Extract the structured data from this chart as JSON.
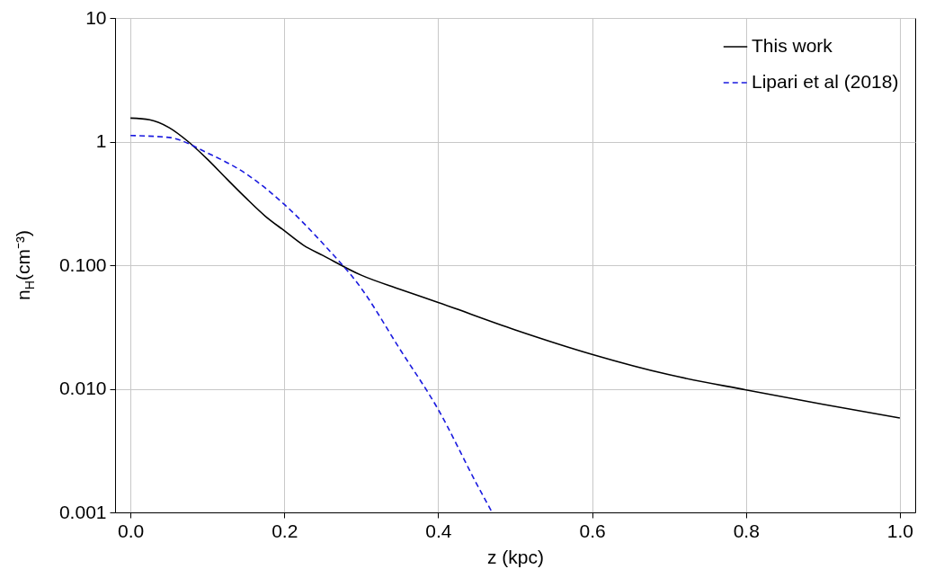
{
  "chart_data": {
    "type": "line",
    "xlabel": "z (kpc)",
    "ylabel": "n$_{H}$(cm⁻³)",
    "log": "y",
    "grid": true,
    "legend": "top right",
    "xlim": [
      -0.02,
      1.02
    ],
    "xticks": [
      {
        "value": 0,
        "label": "0.0"
      },
      0.2,
      0.4,
      0.6,
      0.8,
      {
        "value": 1,
        "label": "1.0"
      }
    ],
    "ylim": [
      0.001,
      10
    ],
    "yticks": [
      0.001,
      {
        "value": 0.01,
        "label": "0.010"
      },
      {
        "value": 0.1,
        "label": "0.100"
      },
      1,
      10
    ],
    "series": [
      {
        "name": "This work",
        "color": "#000000",
        "line_style": "solid",
        "x": [
          0,
          0.025,
          0.05,
          0.075,
          0.1,
          0.125,
          0.15,
          0.175,
          0.2,
          0.225,
          0.25,
          0.3,
          0.35,
          0.4,
          0.5,
          0.6,
          0.7,
          0.8,
          0.9,
          1.0
        ],
        "values": [
          1.55,
          1.5,
          1.3,
          1.0,
          0.72,
          0.5,
          0.35,
          0.25,
          0.19,
          0.145,
          0.12,
          0.083,
          0.064,
          0.05,
          0.03,
          0.019,
          0.013,
          0.0098,
          0.0075,
          0.0058
        ]
      },
      {
        "name": "Lipari et al (2018)",
        "color": "#1a1adf",
        "line_style": "dashed",
        "x": [
          0,
          0.05,
          0.1,
          0.15,
          0.2,
          0.25,
          0.3,
          0.35,
          0.4,
          0.45,
          0.47
        ],
        "values": [
          1.12,
          1.08,
          0.81,
          0.55,
          0.31,
          0.15,
          0.065,
          0.021,
          0.0068,
          0.0017,
          0.001
        ]
      }
    ]
  }
}
